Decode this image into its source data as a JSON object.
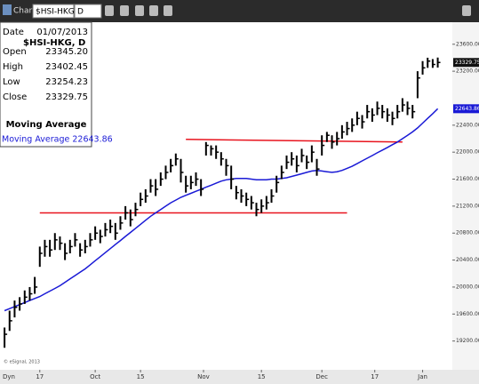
{
  "toolbar": {
    "title": "Chart",
    "symbol": "$HSI-HKG",
    "interval": "D"
  },
  "info": {
    "rows": [
      [
        "Date",
        "01/07/2013"
      ],
      [
        "Open",
        "23345.20"
      ],
      [
        "High",
        "23402.45"
      ],
      [
        "Low",
        "23254.23"
      ],
      [
        "Close",
        "23329.75"
      ]
    ],
    "symbol": "$HSI-HKG, D",
    "study": "Moving Average",
    "study_value": "Moving Average 22643.86"
  },
  "chart_data": {
    "type": "ohlc",
    "ylim": [
      18800,
      23900
    ],
    "yticks": [
      {
        "value": 19200,
        "label": "19200.00"
      },
      {
        "value": 19600,
        "label": "19600.00"
      },
      {
        "value": 20000,
        "label": "20000.00"
      },
      {
        "value": 20400,
        "label": "20400.00"
      },
      {
        "value": 20800,
        "label": "20800.00"
      },
      {
        "value": 21200,
        "label": "21200.00"
      },
      {
        "value": 21600,
        "label": "21600.00"
      },
      {
        "value": 22000,
        "label": "22000.00"
      },
      {
        "value": 22400,
        "label": "22400.00"
      },
      {
        "value": 23200,
        "label": "23200.00"
      },
      {
        "value": 23600,
        "label": "23600.00"
      }
    ],
    "xticks": [
      {
        "value": 7,
        "label": "17"
      },
      {
        "value": 18,
        "label": "Oct"
      },
      {
        "value": 27,
        "label": "15"
      },
      {
        "value": 39.5,
        "label": "Nov"
      },
      {
        "value": 51,
        "label": "15"
      },
      {
        "value": 63,
        "label": "Dec"
      },
      {
        "value": 73.5,
        "label": "17"
      },
      {
        "value": 83,
        "label": "Jan"
      }
    ],
    "xlim": [
      -0.9,
      88.9
    ],
    "color": "#000000",
    "high": [
      19400,
      19650,
      19800,
      19850,
      19950,
      20000,
      20150,
      20600,
      20700,
      20700,
      20800,
      20750,
      20650,
      20700,
      20800,
      20650,
      20700,
      20800,
      20900,
      20850,
      20950,
      21000,
      20950,
      21050,
      21200,
      21150,
      21250,
      21400,
      21450,
      21600,
      21600,
      21700,
      21800,
      21900,
      21980,
      21900,
      21650,
      21650,
      21700,
      21600,
      22150,
      22100,
      22100,
      22000,
      21900,
      21800,
      21500,
      21450,
      21400,
      21350,
      21250,
      21300,
      21350,
      21450,
      21650,
      21800,
      21950,
      22000,
      21950,
      22050,
      21950,
      22100,
      21900,
      22250,
      22300,
      22250,
      22300,
      22400,
      22450,
      22500,
      22600,
      22550,
      22700,
      22650,
      22750,
      22700,
      22650,
      22600,
      22700,
      22800,
      22750,
      22700,
      23200,
      23350,
      23400,
      23380,
      23402.45
    ],
    "low": [
      19100,
      19350,
      19550,
      19650,
      19750,
      19800,
      19900,
      20300,
      20450,
      20450,
      20550,
      20550,
      20400,
      20500,
      20600,
      20450,
      20500,
      20600,
      20700,
      20650,
      20750,
      20800,
      20700,
      20850,
      21000,
      20900,
      21050,
      21200,
      21250,
      21400,
      21350,
      21500,
      21600,
      21700,
      21800,
      21550,
      21400,
      21450,
      21500,
      21350,
      21950,
      21950,
      21900,
      21800,
      21650,
      21450,
      21300,
      21250,
      21200,
      21150,
      21050,
      21100,
      21150,
      21250,
      21400,
      21600,
      21750,
      21800,
      21700,
      21850,
      21750,
      21850,
      21650,
      21950,
      22150,
      22050,
      22100,
      22200,
      22250,
      22300,
      22400,
      22350,
      22500,
      22450,
      22550,
      22500,
      22450,
      22400,
      22500,
      22600,
      22550,
      22500,
      22800,
      23150,
      23250,
      23250,
      23254.23
    ],
    "close": [
      19300,
      19500,
      19700,
      19750,
      19850,
      19900,
      20000,
      20500,
      20600,
      20550,
      20700,
      20650,
      20500,
      20600,
      20700,
      20550,
      20600,
      20700,
      20800,
      20750,
      20850,
      20900,
      20800,
      20950,
      21100,
      21000,
      21150,
      21300,
      21350,
      21500,
      21450,
      21600,
      21700,
      21800,
      21900,
      21700,
      21500,
      21550,
      21600,
      21450,
      22100,
      22050,
      22000,
      21900,
      21800,
      21600,
      21400,
      21350,
      21300,
      21250,
      21150,
      21200,
      21250,
      21350,
      21550,
      21700,
      21850,
      21900,
      21800,
      21950,
      21850,
      22000,
      21750,
      22100,
      22250,
      22150,
      22200,
      22300,
      22350,
      22400,
      22500,
      22450,
      22600,
      22550,
      22650,
      22600,
      22550,
      22500,
      22600,
      22700,
      22650,
      22600,
      23100,
      23250,
      23350,
      23300,
      23329.75
    ],
    "series": [
      {
        "name": "Moving Average",
        "color": "#1a1ad6",
        "values": [
          19650,
          19680,
          19710,
          19740,
          19770,
          19800,
          19830,
          19860,
          19900,
          19940,
          19980,
          20020,
          20070,
          20120,
          20170,
          20220,
          20270,
          20330,
          20390,
          20450,
          20510,
          20570,
          20630,
          20690,
          20750,
          20810,
          20870,
          20930,
          20990,
          21050,
          21100,
          21150,
          21200,
          21250,
          21290,
          21330,
          21360,
          21390,
          21420,
          21450,
          21480,
          21510,
          21540,
          21570,
          21590,
          21600,
          21610,
          21610,
          21610,
          21600,
          21590,
          21590,
          21590,
          21600,
          21600,
          21610,
          21620,
          21640,
          21660,
          21680,
          21700,
          21720,
          21730,
          21720,
          21710,
          21700,
          21710,
          21730,
          21760,
          21790,
          21830,
          21870,
          21910,
          21950,
          21990,
          22030,
          22070,
          22110,
          22150,
          22200,
          22250,
          22300,
          22360,
          22430,
          22500,
          22570,
          22643.86
        ]
      }
    ],
    "trendlines": [
      {
        "color": "#e8141e",
        "x": [
          7,
          68
        ],
        "y": [
          21100,
          21100
        ]
      },
      {
        "color": "#e8141e",
        "x": [
          36,
          79
        ],
        "y": [
          22190,
          22150
        ]
      }
    ],
    "markers": [
      {
        "value": 23329.75,
        "label": "23329.75",
        "color": "#111111"
      },
      {
        "value": 22643.86,
        "label": "22643.86",
        "color": "#1a1ad6"
      }
    ],
    "annotations": [
      "© eSignal, 2013",
      "Dyn"
    ]
  }
}
